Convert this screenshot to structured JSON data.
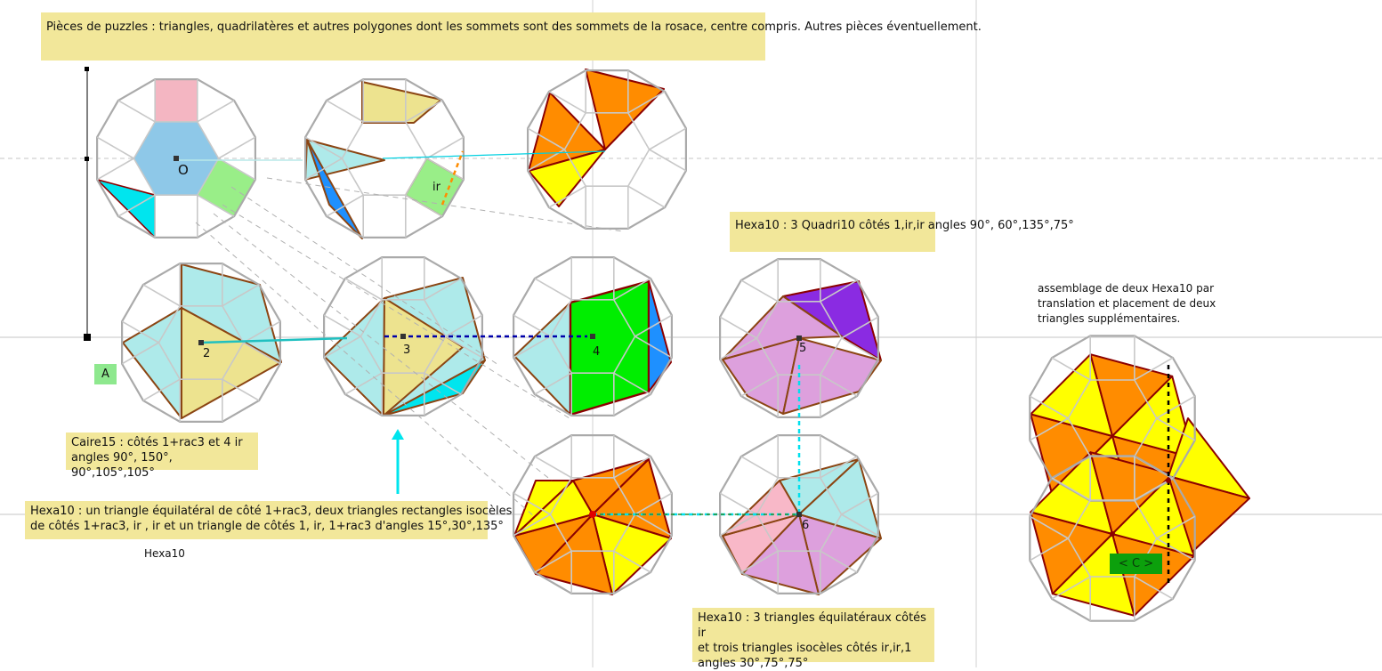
{
  "title": "Pièces de puzzles :  triangles, quadrilatères et autres polygones dont les sommets sont des sommets de la rosace, centre compris. Autres pièces éventuellement.",
  "notes": {
    "hexa10_quadri": "Hexa10 : 3 Quadri10 côtés 1,ir,ir angles 90°, 60°,135°,75°",
    "assemblage": "assemblage de deux Hexa10 par translation et placement de deux triangles supplémentaires.",
    "caire_line1": "Caire15 : côtés 1+rac3 et 4 ir",
    "caire_line2": "angles 90°, 150°, 90°,105°,105°",
    "hexa10_tri_line1": "Hexa10 : un triangle équilatéral de côté 1+rac3, deux triangles rectangles isocèles",
    "hexa10_tri_line2": "de côtés 1+rac3, ir , ir et un triangle de côtés 1, ir, 1+rac3 d'angles 15°,30°,135°",
    "hexa10_plain": "Hexa10",
    "hexa10_eq_line1": "Hexa10 : 3 triangles équilatéraux côtés ir",
    "hexa10_eq_line2": "et trois triangles isocèles côtés ir,ir,1",
    "hexa10_eq_line3": "angles 30°,75°,75°"
  },
  "labels": {
    "O": "O",
    "ir": "ir",
    "n2": "2",
    "n3": "3",
    "n4": "4",
    "n5": "5",
    "n6": "6",
    "A": "A",
    "C": "< C >"
  },
  "colors": {
    "grid": "#c8c8c8",
    "rosace": "#aaaaaa",
    "edge": "#8b4513",
    "darkred": "#8b0000",
    "blue": "#8ec8e8",
    "pink": "#f4b6c2",
    "green": "#99ee88",
    "cyan": "#00e5ee",
    "paleyellow": "#ede38f",
    "orange": "#ff8c00",
    "yellow": "#ffff00",
    "paleblue": "#aeeaea",
    "brightgreen": "#00ee00",
    "blue2": "#1e90ff",
    "purple": "#8a2be2",
    "lilac": "#dda0dd",
    "lightpink": "#f8b8c8",
    "note": "#f2e79a"
  }
}
